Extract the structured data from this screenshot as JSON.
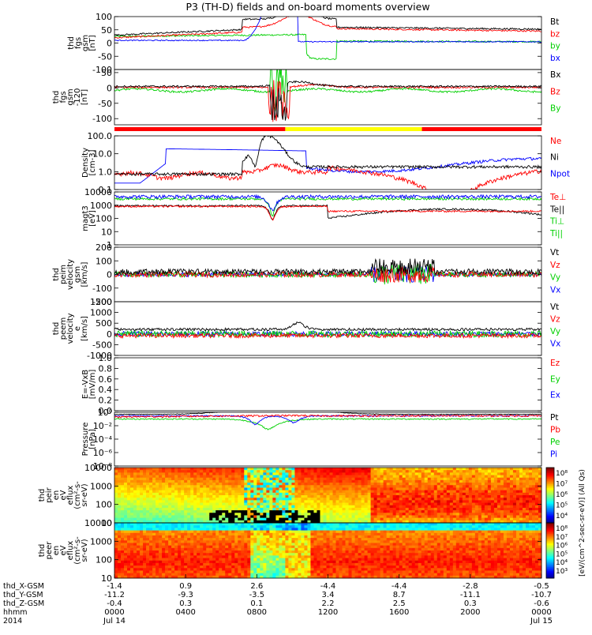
{
  "title": "P3 (TH-D) fields and on-board moments overview",
  "colors": {
    "black": "#000000",
    "red": "#ff0000",
    "green": "#00d000",
    "blue": "#0000ff",
    "yellow": "#ffff00",
    "mode_red": "#ff0000",
    "mode_yellow": "#ffff00"
  },
  "chart_data": [
    {
      "id": "fgs_gsm",
      "type": "line",
      "ylabel": [
        "thd",
        "fgs",
        "gsm",
        "[nT]"
      ],
      "ylim": [
        -100,
        100
      ],
      "yticks": [
        100,
        50,
        0,
        -50,
        -100
      ],
      "legend": [
        {
          "name": "Bt",
          "color": "#000000"
        },
        {
          "name": "bz",
          "color": "#ff0000"
        },
        {
          "name": "by",
          "color": "#00d000"
        },
        {
          "name": "bx",
          "color": "#0000ff"
        }
      ]
    },
    {
      "id": "fgs_gsm_m120",
      "type": "line",
      "ylabel": [
        "thd",
        "fgs",
        "gsm",
        "-120",
        "[nT]"
      ],
      "ylim": [
        -120,
        60
      ],
      "yticks": [
        50,
        0,
        -50,
        -100
      ],
      "legend": [
        {
          "name": "Bx",
          "color": "#000000"
        },
        {
          "name": "Bz",
          "color": "#ff0000"
        },
        {
          "name": "By",
          "color": "#00d000"
        }
      ]
    },
    {
      "id": "mode_bar",
      "type": "bar",
      "segments": [
        {
          "from": 0,
          "to": 0.4,
          "color": "#ff0000"
        },
        {
          "from": 0.4,
          "to": 0.72,
          "color": "#ffff00"
        },
        {
          "from": 0.72,
          "to": 1.0,
          "color": "#ff0000"
        }
      ]
    },
    {
      "id": "density",
      "type": "line",
      "log": true,
      "ylabel": [
        "Density",
        "[cm-3]"
      ],
      "ylim": [
        0.1,
        200
      ],
      "yticks": [
        "100.0",
        "10.0",
        "1.0",
        "0.1"
      ],
      "legend": [
        {
          "name": "Ne",
          "color": "#ff0000"
        },
        {
          "name": "Ni",
          "color": "#000000"
        },
        {
          "name": "Npot",
          "color": "#0000ff"
        }
      ]
    },
    {
      "id": "temperature",
      "type": "line",
      "log": true,
      "ylabel": [
        "magt3",
        "[eV]"
      ],
      "ylim": [
        1,
        10000
      ],
      "yticks": [
        "10000",
        "1000",
        "100",
        "10",
        "1"
      ],
      "legend": [
        {
          "name": "Te⊥",
          "color": "#ff0000"
        },
        {
          "name": "Te||",
          "color": "#000000"
        },
        {
          "name": "Ti⊥",
          "color": "#00d000"
        },
        {
          "name": "Ti||",
          "color": "#00d000"
        }
      ]
    },
    {
      "id": "peim_velocity",
      "type": "line",
      "ylabel": [
        "thd",
        "peim",
        "velocity",
        "gsm",
        "[km/s]"
      ],
      "ylim": [
        -200,
        200
      ],
      "yticks": [
        "200",
        "100",
        "0",
        "-100",
        "-200"
      ],
      "legend": [
        {
          "name": "Vt",
          "color": "#000000"
        },
        {
          "name": "Vz",
          "color": "#ff0000"
        },
        {
          "name": "Vy",
          "color": "#00d000"
        },
        {
          "name": "Vx",
          "color": "#0000ff"
        }
      ]
    },
    {
      "id": "peem_velocity",
      "type": "line",
      "ylabel": [
        "thd",
        "peem",
        "velocity",
        "e",
        "[km/s]"
      ],
      "ylim": [
        -1000,
        1500
      ],
      "yticks": [
        "1500",
        "1000",
        "500",
        "0",
        "-500",
        "-1000"
      ],
      "legend": [
        {
          "name": "Vt",
          "color": "#000000"
        },
        {
          "name": "Vz",
          "color": "#ff0000"
        },
        {
          "name": "Vy",
          "color": "#00d000"
        },
        {
          "name": "Vx",
          "color": "#0000ff"
        }
      ]
    },
    {
      "id": "efield",
      "type": "line",
      "ylabel": [
        "E=-VxB",
        "[mV/m]"
      ],
      "ylim": [
        0,
        1
      ],
      "yticks": [
        "1.0",
        "0.8",
        "0.6",
        "0.4",
        "0.2",
        "0.0"
      ],
      "legend": [
        {
          "name": "Ez",
          "color": "#ff0000"
        },
        {
          "name": "Ey",
          "color": "#00d000"
        },
        {
          "name": "Ex",
          "color": "#0000ff"
        }
      ]
    },
    {
      "id": "pressure",
      "type": "line",
      "log": true,
      "ylabel": [
        "Pressure",
        "[nPa]"
      ],
      "ylim": [
        1e-08,
        1
      ],
      "yticks": [
        "10⁰",
        "10⁻²",
        "10⁻⁴",
        "10⁻⁶",
        "10⁻⁸"
      ],
      "legend": [
        {
          "name": "Pt",
          "color": "#000000"
        },
        {
          "name": "Pb",
          "color": "#ff0000"
        },
        {
          "name": "Pe",
          "color": "#00d000"
        },
        {
          "name": "Pi",
          "color": "#0000ff"
        }
      ]
    },
    {
      "id": "peir_eflux",
      "type": "heatmap",
      "log": true,
      "ylabel": [
        "thd",
        "peir",
        "en",
        "eV",
        "eflux",
        "(cm²-s-",
        "sr-eV)"
      ],
      "ylim": [
        10,
        10000
      ],
      "yticks": [
        "10000",
        "1000",
        "100",
        "10"
      ],
      "colorbar_ticks": [
        "10⁸",
        "10⁷",
        "10⁶",
        "10⁵",
        "10⁴"
      ]
    },
    {
      "id": "peer_eflux",
      "type": "heatmap",
      "log": true,
      "ylabel": [
        "thd",
        "peer",
        "en",
        "eV",
        "eflux",
        "(cm²-s-",
        "sr-eV)"
      ],
      "ylim": [
        10,
        10000
      ],
      "yticks": [
        "10000",
        "1000",
        "100",
        "10"
      ],
      "colorbar_ticks": [
        "10⁸",
        "10⁷",
        "10⁶",
        "10⁵",
        "10⁴",
        "10³"
      ]
    }
  ],
  "colorbar_label": "[eV/(cm^2-sec-sr-eV)] (All Qs)",
  "xaxis": {
    "row_labels": [
      "thd_X-GSM",
      "thd_Y-GSM",
      "thd_Z-GSM",
      "hhmm",
      "2014"
    ],
    "ticks": [
      {
        "x": [
          "-1.4",
          "-11.2",
          "-0.4"
        ],
        "hhmm": "0000",
        "date": "Jul 14"
      },
      {
        "x": [
          "0.9",
          "-9.3",
          "0.3"
        ],
        "hhmm": "0400",
        "date": ""
      },
      {
        "x": [
          "2.6",
          "-3.5",
          "0.1"
        ],
        "hhmm": "0800",
        "date": ""
      },
      {
        "x": [
          "-4.4",
          "3.4",
          "2.2"
        ],
        "hhmm": "1200",
        "date": ""
      },
      {
        "x": [
          "-4.4",
          "8.7",
          "2.5"
        ],
        "hhmm": "1600",
        "date": ""
      },
      {
        "x": [
          "-2.8",
          "-11.1",
          "0.3"
        ],
        "hhmm": "2000",
        "date": ""
      },
      {
        "x": [
          "-0.5",
          "-10.7",
          "-0.6"
        ],
        "hhmm": "0000",
        "date": "Jul 15"
      }
    ]
  }
}
